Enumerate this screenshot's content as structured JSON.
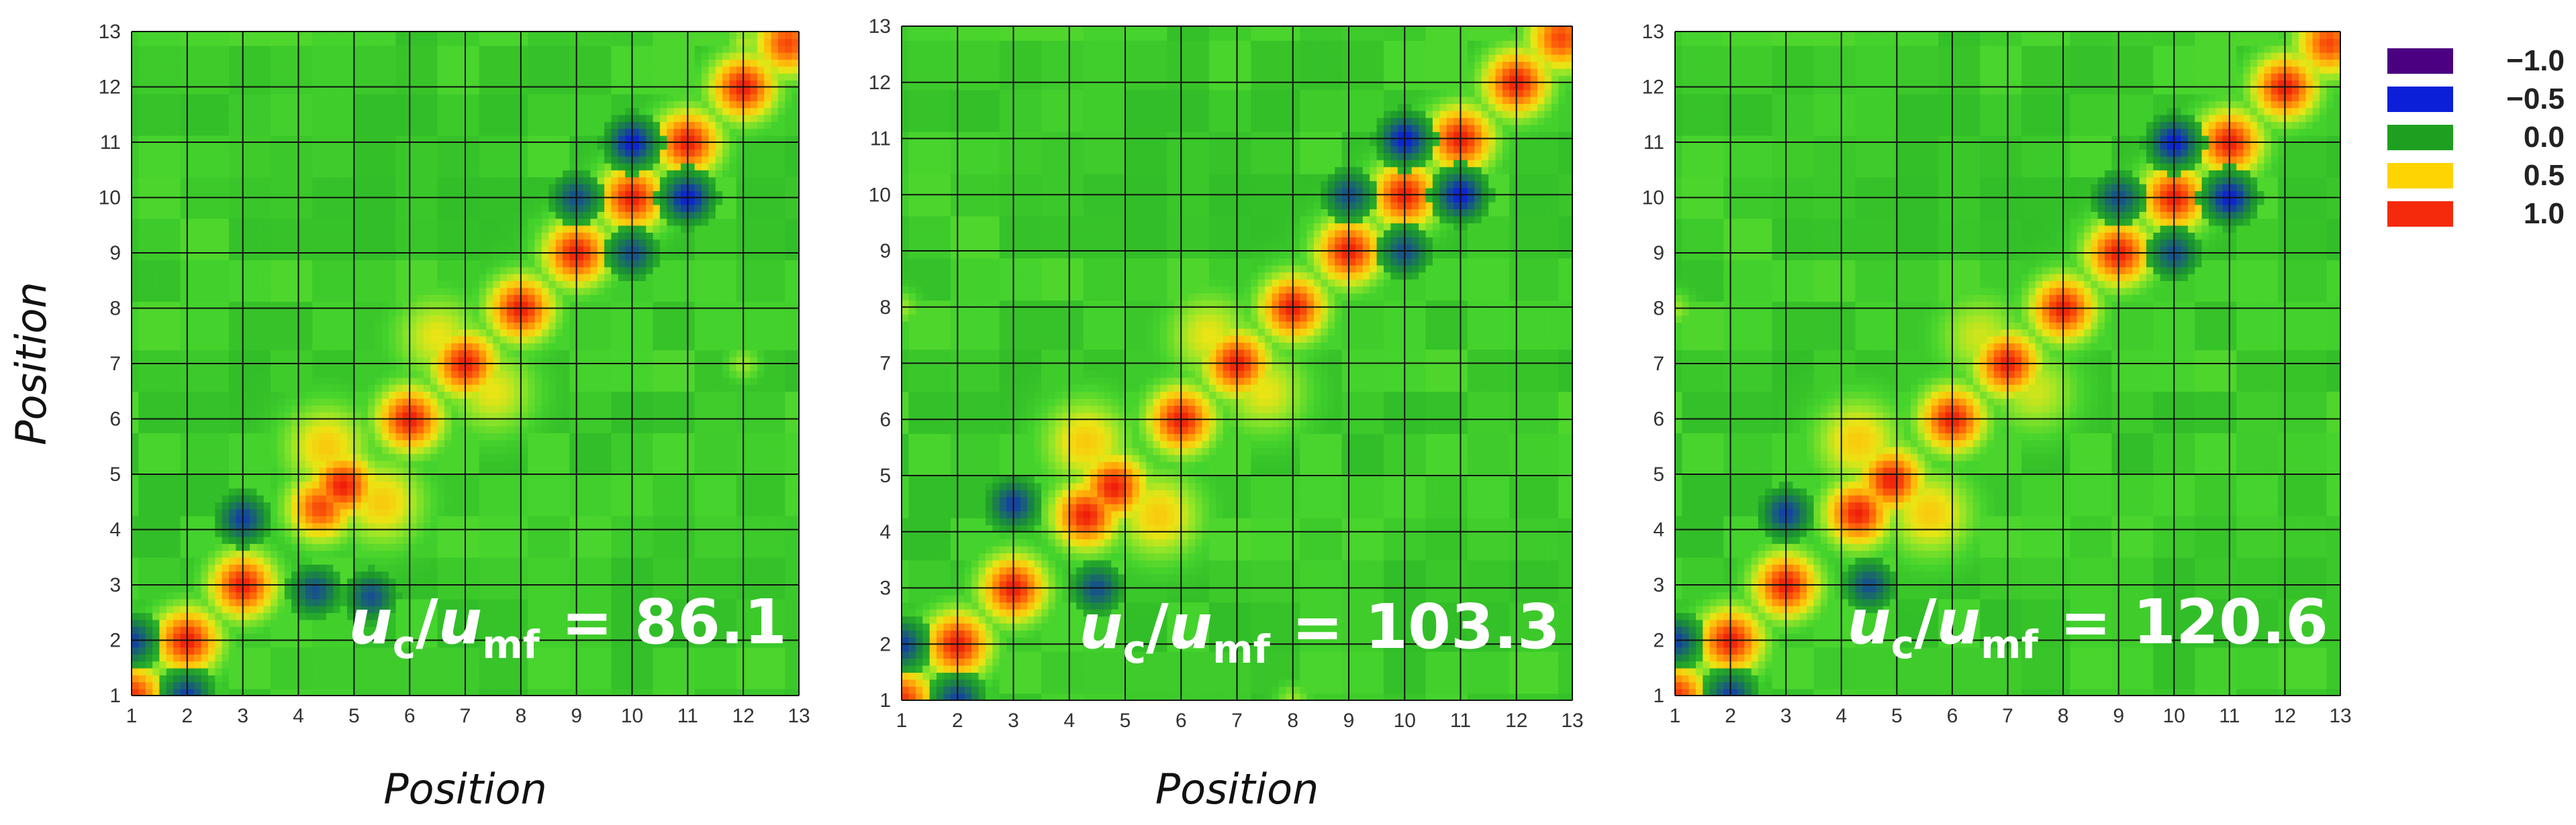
{
  "chart_data": [
    {
      "type": "heatmap",
      "title": "",
      "xlabel": "Position",
      "ylabel": "Position",
      "xlim": [
        1,
        13
      ],
      "ylim": [
        1,
        13
      ],
      "ticks": [
        "1",
        "2",
        "3",
        "4",
        "5",
        "6",
        "7",
        "8",
        "9",
        "10",
        "11",
        "12",
        "13"
      ],
      "annotation": {
        "u": "u",
        "c": "c",
        "slash": "/",
        "mf": "mf",
        "eq": "=",
        "value": "86.1"
      },
      "features": {
        "diagonal_peaks": [
          [
            1,
            1,
            0.95
          ],
          [
            2,
            2,
            1.0
          ],
          [
            3,
            3,
            1.0
          ],
          [
            4.4,
            4.4,
            0.9
          ],
          [
            4.8,
            4.8,
            1.0
          ],
          [
            6,
            6,
            1.0
          ],
          [
            7,
            7,
            1.0
          ],
          [
            8,
            8,
            1.0
          ],
          [
            9,
            9,
            1.0
          ],
          [
            10,
            10,
            1.0
          ],
          [
            11,
            11,
            1.0
          ],
          [
            12,
            12,
            1.0
          ],
          [
            12.8,
            12.8,
            0.9
          ]
        ],
        "offdiag_peaks": [
          [
            4.5,
            5.5,
            0.55
          ],
          [
            5.5,
            4.5,
            0.55
          ],
          [
            6.5,
            7.5,
            0.45
          ],
          [
            7.5,
            6.5,
            0.45
          ]
        ],
        "negative_spots": [
          [
            10,
            11,
            -0.6
          ],
          [
            11,
            10,
            -0.6
          ],
          [
            9,
            10,
            -0.45
          ],
          [
            10,
            9,
            -0.45
          ],
          [
            3,
            4.2,
            -0.5
          ],
          [
            4.3,
            2.9,
            -0.45
          ],
          [
            5.3,
            2.8,
            -0.45
          ],
          [
            1,
            2,
            -0.5
          ],
          [
            2,
            1,
            -0.5
          ]
        ],
        "small_positive_spots": [
          [
            12,
            12.8,
            0.35
          ],
          [
            12,
            7,
            0.3
          ]
        ]
      }
    },
    {
      "type": "heatmap",
      "title": "",
      "xlabel": "Position",
      "ylabel": "",
      "xlim": [
        1,
        13
      ],
      "ylim": [
        1,
        13
      ],
      "ticks": [
        "1",
        "2",
        "3",
        "4",
        "5",
        "6",
        "7",
        "8",
        "9",
        "10",
        "11",
        "12",
        "13"
      ],
      "annotation": {
        "u": "u",
        "c": "c",
        "slash": "/",
        "mf": "mf",
        "eq": "=",
        "value": "103.3"
      },
      "features": {
        "diagonal_peaks": [
          [
            1,
            1,
            0.95
          ],
          [
            2,
            2,
            1.0
          ],
          [
            3,
            3,
            1.0
          ],
          [
            4.3,
            4.3,
            1.0
          ],
          [
            4.8,
            4.8,
            1.0
          ],
          [
            6,
            6,
            1.0
          ],
          [
            7,
            7,
            1.0
          ],
          [
            8,
            8,
            1.0
          ],
          [
            9,
            9,
            1.0
          ],
          [
            10,
            10,
            1.0
          ],
          [
            11,
            11,
            1.0
          ],
          [
            12,
            12,
            1.0
          ],
          [
            12.8,
            12.8,
            0.9
          ]
        ],
        "offdiag_peaks": [
          [
            4.3,
            5.6,
            0.55
          ],
          [
            5.6,
            4.3,
            0.55
          ],
          [
            6.5,
            7.5,
            0.45
          ],
          [
            7.5,
            6.5,
            0.45
          ]
        ],
        "negative_spots": [
          [
            10,
            11,
            -0.6
          ],
          [
            11,
            10,
            -0.6
          ],
          [
            9,
            10,
            -0.45
          ],
          [
            10,
            9,
            -0.45
          ],
          [
            3,
            4.5,
            -0.5
          ],
          [
            4.5,
            3,
            -0.45
          ],
          [
            1,
            2,
            -0.5
          ],
          [
            2,
            1,
            -0.5
          ]
        ],
        "small_positive_spots": [
          [
            1,
            8,
            0.3
          ],
          [
            8,
            1,
            0.3
          ]
        ]
      }
    },
    {
      "type": "heatmap",
      "title": "",
      "xlabel": "",
      "ylabel": "",
      "xlim": [
        1,
        13
      ],
      "ylim": [
        1,
        13
      ],
      "ticks": [
        "1",
        "2",
        "3",
        "4",
        "5",
        "6",
        "7",
        "8",
        "9",
        "10",
        "11",
        "12",
        "13"
      ],
      "annotation": {
        "u": "u",
        "c": "c",
        "slash": "/",
        "mf": "mf",
        "eq": "=",
        "value": "120.6"
      },
      "features": {
        "diagonal_peaks": [
          [
            1,
            1,
            0.95
          ],
          [
            2,
            2,
            1.0
          ],
          [
            3,
            3,
            1.0
          ],
          [
            4.3,
            4.3,
            1.0
          ],
          [
            4.9,
            4.9,
            1.0
          ],
          [
            6,
            6,
            1.0
          ],
          [
            7,
            7,
            1.0
          ],
          [
            8,
            8,
            1.0
          ],
          [
            9,
            9,
            1.0
          ],
          [
            10,
            10,
            1.0
          ],
          [
            11,
            11,
            1.0
          ],
          [
            12,
            12,
            1.0
          ],
          [
            12.8,
            12.8,
            0.9
          ]
        ],
        "offdiag_peaks": [
          [
            4.3,
            5.6,
            0.55
          ],
          [
            5.6,
            4.3,
            0.55
          ],
          [
            6.5,
            7.5,
            0.4
          ],
          [
            7.5,
            6.5,
            0.4
          ]
        ],
        "negative_spots": [
          [
            10,
            11,
            -0.6
          ],
          [
            11,
            10,
            -0.6
          ],
          [
            9,
            10,
            -0.45
          ],
          [
            10,
            9,
            -0.45
          ],
          [
            3,
            4.3,
            -0.5
          ],
          [
            4.5,
            3,
            -0.45
          ],
          [
            1,
            2,
            -0.5
          ],
          [
            2,
            1,
            -0.5
          ]
        ],
        "small_positive_spots": [
          [
            1,
            8,
            0.3
          ]
        ]
      }
    }
  ],
  "legend": {
    "entries": [
      {
        "label": "−1.0",
        "color": "#4B0082"
      },
      {
        "label": "−0.5",
        "color": "#0B1FD8"
      },
      {
        "label": "0.0",
        "color": "#1F9F1F"
      },
      {
        "label": "0.5",
        "color": "#FFD400"
      },
      {
        "label": "1.0",
        "color": "#F42A0A"
      }
    ]
  },
  "colors": {
    "background_field": "#44D12C",
    "grid": "#111111",
    "annotation_text": "#ffffff"
  }
}
